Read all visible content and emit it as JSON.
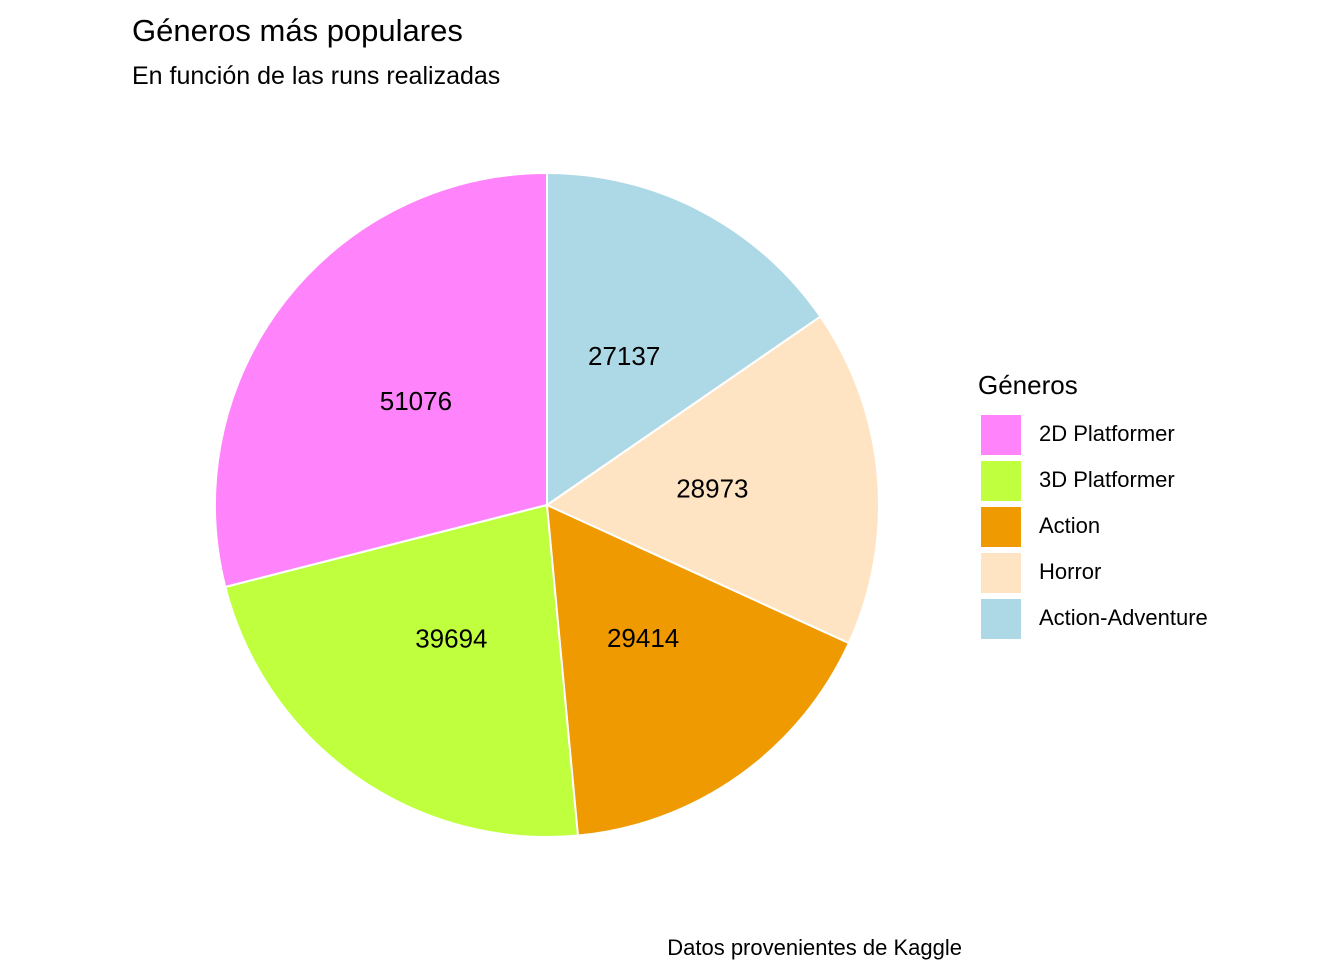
{
  "chart_data": {
    "type": "pie",
    "title": "Géneros más populares",
    "subtitle": "En función de las runs realizadas",
    "caption": "Datos provenientes de Kaggle",
    "legend": {
      "title": "Géneros",
      "placement": "right"
    },
    "categories": [
      "2D Platformer",
      "3D Platformer",
      "Action",
      "Horror",
      "Action-Adventure"
    ],
    "values": [
      51076,
      39694,
      29414,
      28973,
      27137
    ],
    "colors": [
      "#FF83FA",
      "#C0FF3E",
      "#EE9A00",
      "#FFE4C4",
      "#ADD8E6"
    ],
    "slice_order": "counterclockwise-from-top",
    "slice_border_color": "#FFFFFF"
  }
}
